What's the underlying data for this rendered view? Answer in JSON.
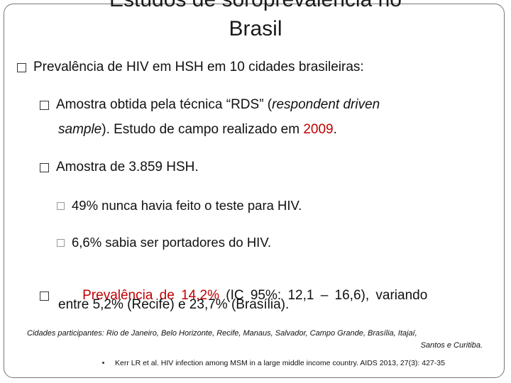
{
  "title": {
    "line1": "Estudos de soroprevalência no",
    "line2": "Brasil"
  },
  "main_bullet": "Prevalência de HIV em HSH em 10 cidades brasileiras:",
  "sub1": {
    "text_a": "Amostra obtida pela técnica “RDS” (",
    "text_a_italic": "respondent driven",
    "text_b_italic": "sample",
    "text_b": "). Estudo de campo realizado em ",
    "year": "2009",
    "text_c": "."
  },
  "sub2": "Amostra de 3.859 HSH.",
  "sub2_items": [
    "49% nunca havia feito o teste para HIV.",
    "6,6% sabia ser portadores do HIV."
  ],
  "sub3": {
    "text_a": "Prevalência de ",
    "value": "14,2%",
    "text_b": " (IC 95%: 12,1 – 16,6), variando",
    "line2": "entre 5,2% (Recife) e 23,7% (Brasília)."
  },
  "cities_note": {
    "line1": "Cidades participantes: Rio de Janeiro, Belo Horizonte, Recife, Manaus, Salvador, Campo Grande, Brasília, Itajaí,",
    "line2": "Santos e Curitiba."
  },
  "reference": "Kerr LR et al. HIV infection among MSM in a large middle income country. AIDS 2013, 27(3): 427-35",
  "colors": {
    "highlight": "#c00000",
    "text": "#111111",
    "border": "#777777"
  }
}
